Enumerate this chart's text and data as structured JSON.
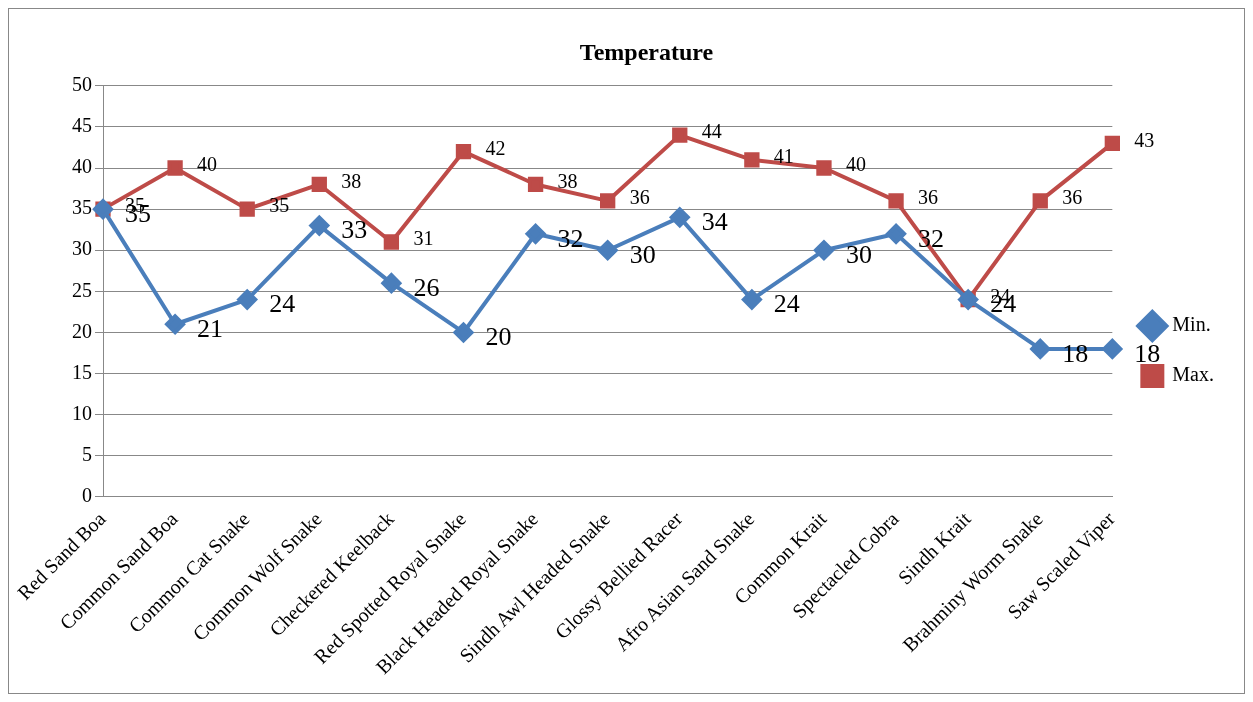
{
  "chart_data": {
    "type": "line",
    "title": "Temperature",
    "categories": [
      "Red Sand Boa",
      "Common Sand Boa",
      "Common Cat Snake",
      "Common Wolf Snake",
      "Checkered Keelback",
      "Red Spotted Royal Snake",
      "Black Headed Royal Snake",
      "Sindh Awl Headed Snake",
      "Glossy Bellied Racer",
      "Afro Asian Sand Snake",
      "Common Krait",
      "Spectacled Cobra",
      "Sindh Krait",
      "Brahminy Worm Snake",
      "Saw Scaled Viper"
    ],
    "series": [
      {
        "name": "Min.",
        "color": "#4a7ebb",
        "marker": "diamond",
        "values": [
          35,
          21,
          24,
          33,
          26,
          20,
          32,
          30,
          34,
          24,
          30,
          32,
          24,
          18,
          18
        ]
      },
      {
        "name": "Max.",
        "color": "#be4b48",
        "marker": "square",
        "values": [
          35,
          40,
          35,
          38,
          31,
          42,
          38,
          36,
          44,
          41,
          40,
          36,
          24,
          36,
          43
        ]
      }
    ],
    "ylim": [
      0,
      50
    ],
    "yticks": [
      0,
      5,
      10,
      15,
      20,
      25,
      30,
      35,
      40,
      45,
      50
    ],
    "grid": "y",
    "legend": "right",
    "data_labels": true,
    "line_style": "solid"
  }
}
